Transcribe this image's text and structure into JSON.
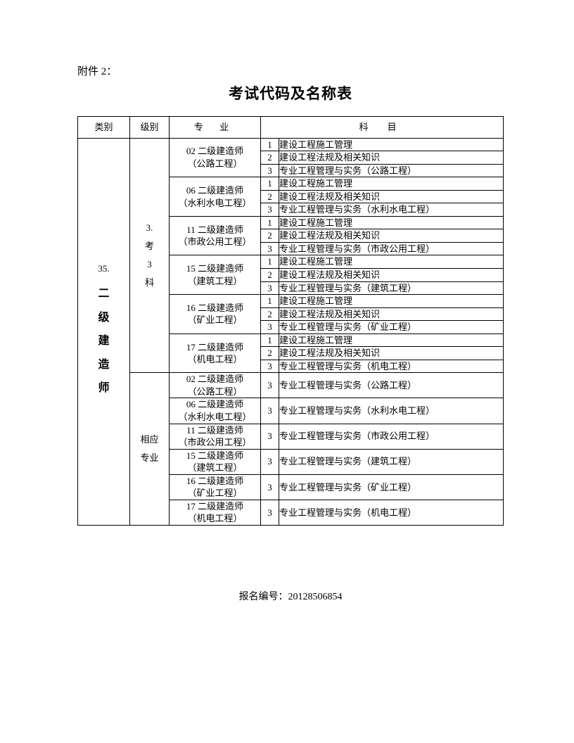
{
  "attachment_label": "附件 2：",
  "title": "考试代码及名称表",
  "headers": {
    "category": "类别",
    "level": "级别",
    "major": "专 业",
    "subject": "科 目"
  },
  "category": {
    "number": "35.",
    "chars": [
      "二",
      "级",
      "建",
      "造",
      "师"
    ]
  },
  "level1": {
    "chars": [
      "3.",
      "考",
      "3",
      "科"
    ]
  },
  "level2": {
    "text": "相应专业"
  },
  "level2_line1": "相应",
  "level2_line2": "专业",
  "majors1": [
    {
      "line1": "02 二级建造师",
      "line2": "（公路工程）",
      "subjects": [
        {
          "no": "1",
          "name": "建设工程施工管理"
        },
        {
          "no": "2",
          "name": "建设工程法规及相关知识"
        },
        {
          "no": "3",
          "name": "专业工程管理与实务（公路工程）"
        }
      ]
    },
    {
      "line1": "06 二级建造师",
      "line2": "（水利水电工程）",
      "subjects": [
        {
          "no": "1",
          "name": "建设工程施工管理"
        },
        {
          "no": "2",
          "name": "建设工程法规及相关知识"
        },
        {
          "no": "3",
          "name": "专业工程管理与实务（水利水电工程）"
        }
      ]
    },
    {
      "line1": "11 二级建造师",
      "line2": "（市政公用工程）",
      "subjects": [
        {
          "no": "1",
          "name": "建设工程施工管理"
        },
        {
          "no": "2",
          "name": "建设工程法规及相关知识"
        },
        {
          "no": "3",
          "name": "专业工程管理与实务（市政公用工程）"
        }
      ]
    },
    {
      "line1": "15 二级建造师",
      "line2": "（建筑工程）",
      "subjects": [
        {
          "no": "1",
          "name": "建设工程施工管理"
        },
        {
          "no": "2",
          "name": "建设工程法规及相关知识"
        },
        {
          "no": "3",
          "name": "专业工程管理与实务（建筑工程）"
        }
      ]
    },
    {
      "line1": "16 二级建造师",
      "line2": "（矿业工程）",
      "subjects": [
        {
          "no": "1",
          "name": "建设工程施工管理"
        },
        {
          "no": "2",
          "name": "建设工程法规及相关知识"
        },
        {
          "no": "3",
          "name": "专业工程管理与实务（矿业工程）"
        }
      ]
    },
    {
      "line1": "17 二级建造师",
      "line2": "（机电工程）",
      "subjects": [
        {
          "no": "1",
          "name": "建设工程施工管理"
        },
        {
          "no": "2",
          "name": "建设工程法规及相关知识"
        },
        {
          "no": "3",
          "name": "专业工程管理与实务（机电工程）"
        }
      ]
    }
  ],
  "majors2": [
    {
      "line1": "02 二级建造师",
      "line2": "（公路工程）",
      "subjects": [
        {
          "no": "3",
          "name": "专业工程管理与实务（公路工程）"
        }
      ]
    },
    {
      "line1": "06 二级建造师",
      "line2": "（水利水电工程）",
      "subjects": [
        {
          "no": "3",
          "name": "专业工程管理与实务（水利水电工程）"
        }
      ]
    },
    {
      "line1": "11 二级建造师",
      "line2": "（市政公用工程）",
      "subjects": [
        {
          "no": "3",
          "name": "专业工程管理与实务（市政公用工程）"
        }
      ]
    },
    {
      "line1": "15 二级建造师",
      "line2": "（建筑工程）",
      "subjects": [
        {
          "no": "3",
          "name": "专业工程管理与实务（建筑工程）"
        }
      ]
    },
    {
      "line1": "16 二级建造师",
      "line2": "（矿业工程）",
      "subjects": [
        {
          "no": "3",
          "name": "专业工程管理与实务（矿业工程）"
        }
      ]
    },
    {
      "line1": "17 二级建造师",
      "line2": "（机电工程）",
      "subjects": [
        {
          "no": "3",
          "name": "专业工程管理与实务（机电工程）"
        }
      ]
    }
  ],
  "footer": "报名编号：20128506854"
}
